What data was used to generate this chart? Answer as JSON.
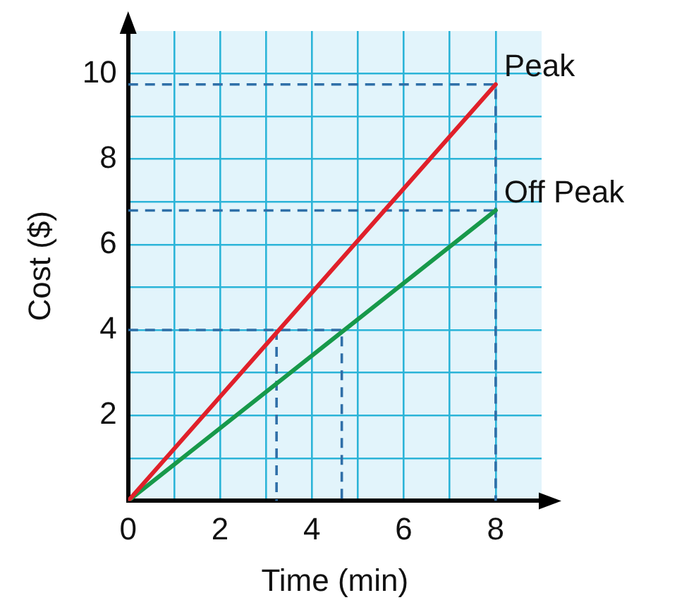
{
  "chart_data": {
    "type": "line",
    "xlabel": "Time (min)",
    "ylabel": "Cost ($)",
    "xlim": [
      0,
      9
    ],
    "ylim": [
      0,
      11
    ],
    "xticks": [
      0,
      {
        "value": 1,
        "label": null
      },
      2,
      {
        "value": 3,
        "label": null
      },
      4,
      {
        "value": 5,
        "label": null
      },
      6,
      {
        "value": 7,
        "label": null
      },
      8
    ],
    "yticks": [
      {
        "value": 1,
        "label": null
      },
      2,
      {
        "value": 3,
        "label": null
      },
      4,
      {
        "value": 5,
        "label": null
      },
      6,
      {
        "value": 7,
        "label": null
      },
      8,
      {
        "value": 9,
        "label": null
      },
      10
    ],
    "grid": true,
    "legend": false,
    "marker": "none",
    "line_style": "solid",
    "series": [
      {
        "name": "Peak",
        "color": "#e0202a",
        "x": [
          0,
          8
        ],
        "values": [
          0,
          9.75
        ]
      },
      {
        "name": "Off Peak",
        "color": "#17994a",
        "x": [
          0,
          8
        ],
        "values": [
          0,
          6.8
        ]
      },
      {
        "color": "#2f6fa8",
        "line_style": "dashed",
        "x": [
          0,
          8,
          8
        ],
        "values": [
          9.75,
          9.75,
          0
        ]
      },
      {
        "color": "#2f6fa8",
        "line_style": "dashed",
        "x": [
          0,
          8
        ],
        "values": [
          6.8,
          6.8
        ]
      },
      {
        "color": "#2f6fa8",
        "line_style": "dashed",
        "x": [
          0,
          4.65,
          4.65
        ],
        "values": [
          4,
          4,
          0
        ]
      },
      {
        "color": "#2f6fa8",
        "line_style": "dashed",
        "x": [
          3.23,
          3.23
        ],
        "values": [
          4,
          0
        ]
      }
    ]
  }
}
